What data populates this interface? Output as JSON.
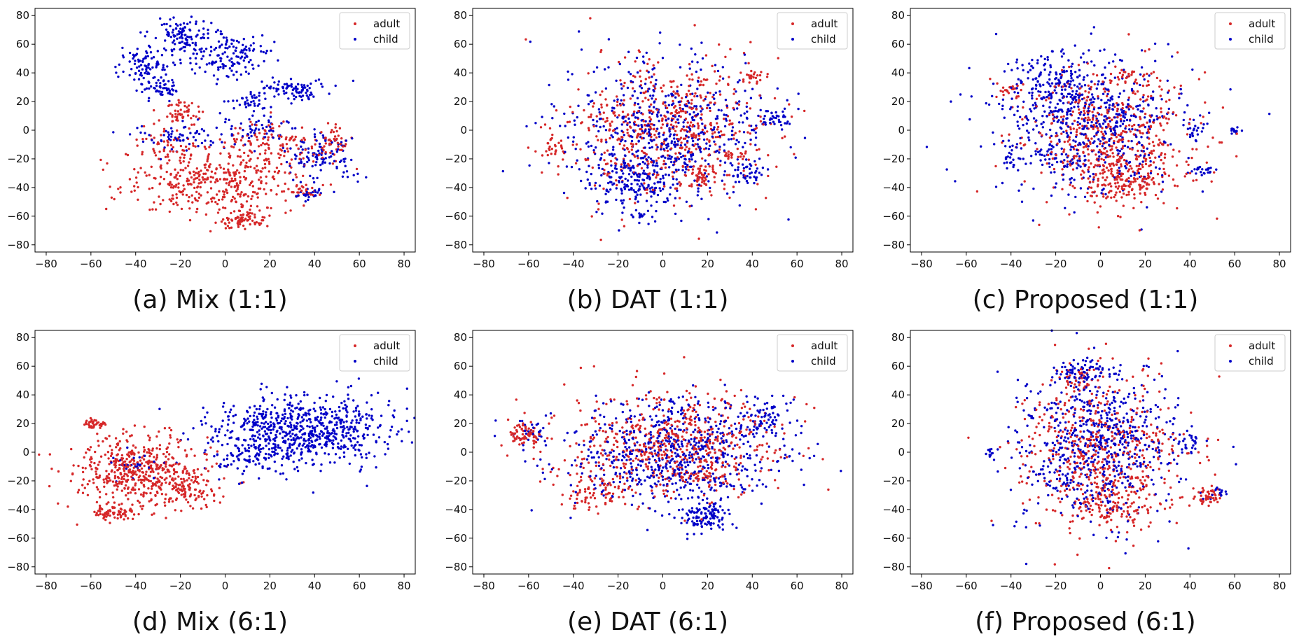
{
  "chart_data": [
    {
      "type": "scatter",
      "caption": "(a) Mix (1:1)",
      "xlim": [
        -85,
        85
      ],
      "ylim": [
        -85,
        85
      ],
      "xticks": [
        -80,
        -60,
        -40,
        -20,
        0,
        20,
        40,
        60,
        80
      ],
      "yticks": [
        -80,
        -60,
        -40,
        -20,
        0,
        20,
        40,
        60,
        80
      ],
      "legend_position": "top-right",
      "series": [
        {
          "name": "adult",
          "color": "#d62728",
          "clusters": [
            {
              "cx": -5,
              "cy": -35,
              "sx": 20,
              "sy": 12,
              "n": 900
            },
            {
              "cx": 8,
              "cy": -62,
              "sx": 5,
              "sy": 3,
              "n": 150
            },
            {
              "cx": -20,
              "cy": 12,
              "sx": 5,
              "sy": 5,
              "n": 120
            },
            {
              "cx": 20,
              "cy": -10,
              "sx": 12,
              "sy": 8,
              "n": 250
            },
            {
              "cx": 48,
              "cy": -8,
              "sx": 4,
              "sy": 6,
              "n": 100
            },
            {
              "cx": 35,
              "cy": -43,
              "sx": 3,
              "sy": 2,
              "n": 50
            },
            {
              "cx": -28,
              "cy": -10,
              "sx": 6,
              "sy": 5,
              "n": 80
            }
          ]
        },
        {
          "name": "child",
          "color": "#0000c8",
          "clusters": [
            {
              "cx": -20,
              "cy": 68,
              "sx": 6,
              "sy": 5,
              "n": 200
            },
            {
              "cx": 0,
              "cy": 53,
              "sx": 10,
              "sy": 8,
              "n": 350
            },
            {
              "cx": -35,
              "cy": 45,
              "sx": 6,
              "sy": 6,
              "n": 200
            },
            {
              "cx": -28,
              "cy": 28,
              "sx": 5,
              "sy": 5,
              "n": 120
            },
            {
              "cx": 30,
              "cy": 28,
              "sx": 8,
              "sy": 4,
              "n": 200
            },
            {
              "cx": 42,
              "cy": -18,
              "sx": 8,
              "sy": 8,
              "n": 250
            },
            {
              "cx": 10,
              "cy": 20,
              "sx": 4,
              "sy": 3,
              "n": 80
            },
            {
              "cx": -20,
              "cy": -5,
              "sx": 10,
              "sy": 5,
              "n": 150
            },
            {
              "cx": 15,
              "cy": 0,
              "sx": 8,
              "sy": 6,
              "n": 120
            },
            {
              "cx": 38,
              "cy": -45,
              "sx": 4,
              "sy": 2,
              "n": 60
            }
          ]
        }
      ]
    },
    {
      "type": "scatter",
      "caption": "(b) DAT (1:1)",
      "xlim": [
        -85,
        85
      ],
      "ylim": [
        -85,
        85
      ],
      "xticks": [
        -80,
        -60,
        -40,
        -20,
        0,
        20,
        40,
        60,
        80
      ],
      "yticks": [
        -80,
        -60,
        -40,
        -20,
        0,
        20,
        40,
        60,
        80
      ],
      "legend_position": "top-right",
      "series": [
        {
          "name": "adult",
          "color": "#d62728",
          "clusters": [
            {
              "cx": 0,
              "cy": 0,
              "sx": 22,
              "sy": 24,
              "n": 1300
            },
            {
              "cx": 17,
              "cy": -32,
              "sx": 3,
              "sy": 4,
              "n": 100
            },
            {
              "cx": 40,
              "cy": 38,
              "sx": 3,
              "sy": 2,
              "n": 50
            },
            {
              "cx": 32,
              "cy": -18,
              "sx": 3,
              "sy": 2,
              "n": 50
            },
            {
              "cx": -48,
              "cy": -12,
              "sx": 3,
              "sy": 3,
              "n": 50
            }
          ]
        },
        {
          "name": "child",
          "color": "#0000c8",
          "clusters": [
            {
              "cx": 0,
              "cy": 0,
              "sx": 22,
              "sy": 24,
              "n": 1400
            },
            {
              "cx": -12,
              "cy": -38,
              "sx": 10,
              "sy": 9,
              "n": 300
            },
            {
              "cx": 50,
              "cy": 8,
              "sx": 4,
              "sy": 3,
              "n": 80
            },
            {
              "cx": 38,
              "cy": -30,
              "sx": 4,
              "sy": 5,
              "n": 80
            },
            {
              "cx": -10,
              "cy": -60,
              "sx": 2,
              "sy": 1,
              "n": 25
            }
          ]
        }
      ]
    },
    {
      "type": "scatter",
      "caption": "(c) Proposed (1:1)",
      "xlim": [
        -85,
        85
      ],
      "ylim": [
        -85,
        85
      ],
      "xticks": [
        -80,
        -60,
        -40,
        -20,
        0,
        20,
        40,
        60,
        80
      ],
      "yticks": [
        -80,
        -60,
        -40,
        -20,
        0,
        20,
        40,
        60,
        80
      ],
      "legend_position": "top-right",
      "series": [
        {
          "name": "adult",
          "color": "#d62728",
          "clusters": [
            {
              "cx": 5,
              "cy": -5,
              "sx": 20,
              "sy": 24,
              "n": 1200
            },
            {
              "cx": 12,
              "cy": -35,
              "sx": 10,
              "sy": 8,
              "n": 350
            },
            {
              "cx": -40,
              "cy": 28,
              "sx": 3,
              "sy": 3,
              "n": 50
            },
            {
              "cx": 12,
              "cy": 38,
              "sx": 3,
              "sy": 3,
              "n": 40
            }
          ]
        },
        {
          "name": "child",
          "color": "#0000c8",
          "clusters": [
            {
              "cx": -5,
              "cy": 5,
              "sx": 20,
              "sy": 24,
              "n": 1400
            },
            {
              "cx": -20,
              "cy": 35,
              "sx": 10,
              "sy": 10,
              "n": 250
            },
            {
              "cx": 60,
              "cy": 0,
              "sx": 1.5,
              "sy": 1.5,
              "n": 35
            },
            {
              "cx": 45,
              "cy": -28,
              "sx": 3,
              "sy": 2,
              "n": 50
            },
            {
              "cx": -40,
              "cy": -20,
              "sx": 3,
              "sy": 3,
              "n": 50
            },
            {
              "cx": 42,
              "cy": 0,
              "sx": 3,
              "sy": 4,
              "n": 50
            }
          ]
        }
      ]
    },
    {
      "type": "scatter",
      "caption": "(d) Mix (6:1)",
      "xlim": [
        -85,
        85
      ],
      "ylim": [
        -85,
        85
      ],
      "xticks": [
        -80,
        -60,
        -40,
        -20,
        0,
        20,
        40,
        60,
        80
      ],
      "yticks": [
        -80,
        -60,
        -40,
        -20,
        0,
        20,
        40,
        60,
        80
      ],
      "legend_position": "top-right",
      "series": [
        {
          "name": "adult",
          "color": "#d62728",
          "clusters": [
            {
              "cx": -38,
              "cy": -12,
              "sx": 14,
              "sy": 12,
              "n": 1100
            },
            {
              "cx": -50,
              "cy": -42,
              "sx": 5,
              "sy": 3,
              "n": 150
            },
            {
              "cx": -59,
              "cy": 20,
              "sx": 2.5,
              "sy": 2,
              "n": 80
            },
            {
              "cx": -15,
              "cy": -25,
              "sx": 7,
              "sy": 7,
              "n": 200
            }
          ]
        },
        {
          "name": "child",
          "color": "#0000c8",
          "clusters": [
            {
              "cx": 35,
              "cy": 15,
              "sx": 20,
              "sy": 12,
              "n": 1600
            },
            {
              "cx": 10,
              "cy": -5,
              "sx": 8,
              "sy": 6,
              "n": 150
            },
            {
              "cx": -40,
              "cy": -10,
              "sx": 8,
              "sy": 6,
              "n": 60
            }
          ]
        }
      ]
    },
    {
      "type": "scatter",
      "caption": "(e) DAT (6:1)",
      "xlim": [
        -85,
        85
      ],
      "ylim": [
        -85,
        85
      ],
      "xticks": [
        -80,
        -60,
        -40,
        -20,
        0,
        20,
        40,
        60,
        80
      ],
      "yticks": [
        -80,
        -60,
        -40,
        -20,
        0,
        20,
        40,
        60,
        80
      ],
      "legend_position": "top-right",
      "series": [
        {
          "name": "adult",
          "color": "#d62728",
          "clusters": [
            {
              "cx": 5,
              "cy": 5,
              "sx": 25,
              "sy": 18,
              "n": 1300
            },
            {
              "cx": -62,
              "cy": 12,
              "sx": 4,
              "sy": 4,
              "n": 150
            },
            {
              "cx": -30,
              "cy": -25,
              "sx": 8,
              "sy": 8,
              "n": 200
            },
            {
              "cx": 18,
              "cy": -17,
              "sx": 4,
              "sy": 2,
              "n": 60
            }
          ]
        },
        {
          "name": "child",
          "color": "#0000c8",
          "clusters": [
            {
              "cx": 5,
              "cy": 0,
              "sx": 25,
              "sy": 18,
              "n": 1500
            },
            {
              "cx": 18,
              "cy": -45,
              "sx": 6,
              "sy": 6,
              "n": 250
            },
            {
              "cx": 45,
              "cy": 25,
              "sx": 7,
              "sy": 8,
              "n": 150
            },
            {
              "cx": -62,
              "cy": 15,
              "sx": 6,
              "sy": 6,
              "n": 60
            }
          ]
        }
      ]
    },
    {
      "type": "scatter",
      "caption": "(f) Proposed (6:1)",
      "xlim": [
        -85,
        85
      ],
      "ylim": [
        -85,
        85
      ],
      "xticks": [
        -80,
        -60,
        -40,
        -20,
        0,
        20,
        40,
        60,
        80
      ],
      "yticks": [
        -80,
        -60,
        -40,
        -20,
        0,
        20,
        40,
        60,
        80
      ],
      "legend_position": "top-right",
      "series": [
        {
          "name": "adult",
          "color": "#d62728",
          "clusters": [
            {
              "cx": 0,
              "cy": 0,
              "sx": 18,
              "sy": 26,
              "n": 1200
            },
            {
              "cx": 48,
              "cy": -30,
              "sx": 3,
              "sy": 3,
              "n": 100
            },
            {
              "cx": 5,
              "cy": -35,
              "sx": 10,
              "sy": 8,
              "n": 250
            },
            {
              "cx": -10,
              "cy": 50,
              "sx": 5,
              "sy": 6,
              "n": 80
            }
          ]
        },
        {
          "name": "child",
          "color": "#0000c8",
          "clusters": [
            {
              "cx": 0,
              "cy": 5,
              "sx": 18,
              "sy": 26,
              "n": 1500
            },
            {
              "cx": -10,
              "cy": 55,
              "sx": 6,
              "sy": 5,
              "n": 150
            },
            {
              "cx": 40,
              "cy": 5,
              "sx": 3,
              "sy": 4,
              "n": 50
            },
            {
              "cx": -50,
              "cy": 0,
              "sx": 2,
              "sy": 2,
              "n": 25
            },
            {
              "cx": 52,
              "cy": -28,
              "sx": 3,
              "sy": 2,
              "n": 40
            }
          ]
        }
      ]
    }
  ]
}
